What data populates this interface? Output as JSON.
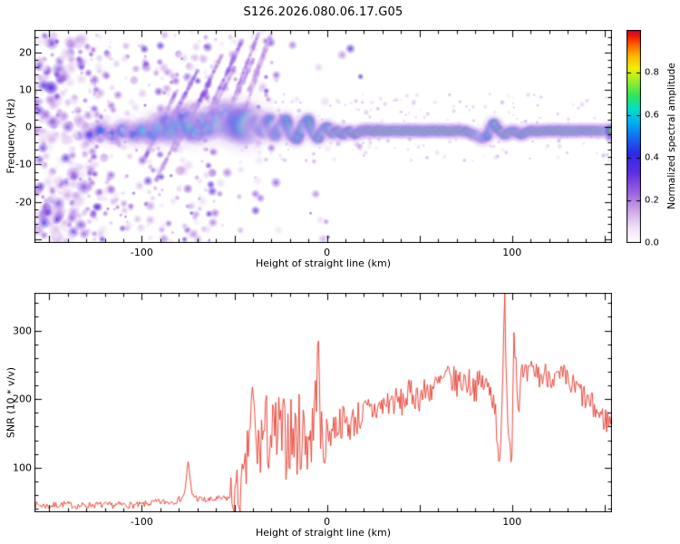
{
  "figure": {
    "background": "#ffffff"
  },
  "chart_data": [
    {
      "type": "heatmap",
      "title": "S126.2026.080.06.17.G05",
      "xlabel": "Height of straight line (km)",
      "ylabel": "Frequency (Hz)",
      "xlim": [
        -158,
        154
      ],
      "ylim": [
        -31,
        26
      ],
      "xticks": [
        -100,
        0,
        100
      ],
      "yticks": [
        20,
        10,
        0,
        -10,
        -20
      ],
      "x_minor_step": 10,
      "x_major_step": 50,
      "y_minor_step": 2,
      "y_major_step": 10,
      "seed": 13,
      "colorbar": {
        "label": "Normalized spectral amplitude",
        "ticks": [
          0.0,
          0.2,
          0.4,
          0.6,
          0.8
        ],
        "range": [
          0,
          1
        ],
        "stops": [
          {
            "t": 0.0,
            "c": "#ffffff"
          },
          {
            "t": 0.07,
            "c": "#f0e4f7"
          },
          {
            "t": 0.15,
            "c": "#cfa7e8"
          },
          {
            "t": 0.24,
            "c": "#9b5fe0"
          },
          {
            "t": 0.33,
            "c": "#5f2ee0"
          },
          {
            "t": 0.42,
            "c": "#2a2ae8"
          },
          {
            "t": 0.5,
            "c": "#1470f0"
          },
          {
            "t": 0.57,
            "c": "#00b4f0"
          },
          {
            "t": 0.63,
            "c": "#00e0c8"
          },
          {
            "t": 0.69,
            "c": "#2ee65a"
          },
          {
            "t": 0.76,
            "c": "#9ced2a"
          },
          {
            "t": 0.82,
            "c": "#f2f000"
          },
          {
            "t": 0.88,
            "c": "#ffb400"
          },
          {
            "t": 0.93,
            "c": "#ff6000"
          },
          {
            "t": 0.97,
            "c": "#f01800"
          },
          {
            "t": 1.0,
            "c": "#c8003c"
          }
        ]
      },
      "noise": {
        "count": 1500,
        "xmax": 25,
        "amp_min": 0.07,
        "amp_max": 0.35
      },
      "halo_specks": {
        "count": 220,
        "x0": -35,
        "x1": 154,
        "f0": -9,
        "f1": 9,
        "amp": 0.14
      },
      "streaks": [
        [
          -98,
          -8,
          -82,
          9,
          0.3
        ],
        [
          -92,
          -14,
          -72,
          6,
          0.25
        ],
        [
          -88,
          -2,
          -70,
          15,
          0.32
        ],
        [
          -82,
          -6,
          -63,
          12,
          0.28
        ],
        [
          -75,
          1,
          -57,
          19,
          0.3
        ],
        [
          -69,
          -3,
          -50,
          16,
          0.26
        ],
        [
          -63,
          5,
          -46,
          23,
          0.3
        ],
        [
          -57,
          -1,
          -40,
          18,
          0.24
        ],
        [
          -51,
          7,
          -37,
          25,
          0.27
        ],
        [
          -46,
          2,
          -33,
          21,
          0.22
        ],
        [
          -42,
          10,
          -30,
          25,
          0.2
        ]
      ],
      "trace": [
        [
          -128,
          -2,
          0.42,
          1.4,
          1
        ],
        [
          -122,
          -1,
          0.5,
          1.5,
          1
        ],
        [
          -116,
          -2,
          0.48,
          1.3,
          1
        ],
        [
          -110,
          -1,
          0.55,
          1.6,
          1
        ],
        [
          -104,
          -2,
          0.5,
          1.4,
          1
        ],
        [
          -99,
          -1,
          0.6,
          1.7,
          1
        ],
        [
          -94,
          -2,
          0.55,
          1.5,
          1
        ],
        [
          -90,
          0,
          0.62,
          1.9,
          1
        ],
        [
          -87,
          2,
          0.5,
          1.5,
          1
        ],
        [
          -84,
          -1,
          0.65,
          1.9,
          1
        ],
        [
          -80,
          1,
          0.6,
          2.0,
          1
        ],
        [
          -77,
          3,
          0.52,
          1.6,
          1
        ],
        [
          -74,
          0,
          0.66,
          2.0,
          1
        ],
        [
          -70,
          -1,
          0.6,
          1.8,
          1
        ],
        [
          -67,
          2,
          0.55,
          1.6,
          1
        ],
        [
          -64,
          0,
          0.62,
          1.8,
          1
        ],
        [
          -61,
          3,
          0.5,
          1.5,
          1
        ],
        [
          -58,
          1,
          0.66,
          2.0,
          1
        ],
        [
          -55,
          4,
          0.55,
          1.8,
          1
        ],
        [
          -52,
          0,
          0.62,
          1.9,
          1
        ],
        [
          -49,
          2,
          0.6,
          2.2,
          1
        ],
        [
          -46,
          0,
          0.66,
          2.4,
          1
        ],
        [
          -43,
          1,
          0.7,
          2.6,
          1
        ],
        [
          -40,
          0,
          0.7,
          2.2,
          0
        ],
        [
          -37,
          1,
          0.66,
          1.8,
          0
        ],
        [
          -34,
          -1,
          0.7,
          1.6,
          0
        ],
        [
          -31,
          2,
          0.66,
          1.6,
          0
        ],
        [
          -28,
          -2,
          0.7,
          1.5,
          0
        ],
        [
          -25,
          0,
          0.72,
          1.4,
          0
        ],
        [
          -22,
          2,
          0.66,
          1.4,
          0
        ],
        [
          -19,
          -2,
          0.74,
          1.4,
          0
        ],
        [
          -16,
          -3,
          0.7,
          1.3,
          0
        ],
        [
          -13,
          0,
          0.75,
          1.3,
          0
        ],
        [
          -10,
          2,
          0.72,
          1.3,
          0
        ],
        [
          -8,
          -1,
          0.75,
          1.2,
          0
        ],
        [
          -5,
          -3,
          0.78,
          1.2,
          0
        ],
        [
          -2,
          -1,
          0.8,
          1.2,
          0
        ],
        [
          0,
          0,
          0.8,
          1.2,
          0
        ],
        [
          3,
          -2,
          0.8,
          1.1,
          0
        ],
        [
          6,
          -1,
          0.84,
          1.1,
          0
        ],
        [
          9,
          -2,
          0.82,
          1.1,
          0
        ],
        [
          12,
          -1,
          0.85,
          1.0,
          0
        ],
        [
          15,
          -2,
          0.86,
          1.0,
          0
        ],
        [
          18,
          -1,
          0.88,
          1.0,
          0
        ],
        [
          22,
          -1,
          0.9,
          1.0,
          0
        ],
        [
          26,
          -1,
          0.94,
          1.0,
          0
        ],
        [
          30,
          -1,
          1.0,
          0.95,
          0
        ],
        [
          40,
          -1,
          1.0,
          0.95,
          0
        ],
        [
          50,
          -1,
          1.0,
          0.95,
          0
        ],
        [
          60,
          -1,
          1.0,
          0.95,
          0
        ],
        [
          70,
          -1,
          0.97,
          0.95,
          0
        ],
        [
          75,
          -1,
          0.9,
          0.95,
          0
        ],
        [
          80,
          -2,
          0.84,
          0.95,
          0
        ],
        [
          84,
          -3,
          0.7,
          1.1,
          0
        ],
        [
          87,
          -2,
          0.62,
          1.2,
          0
        ],
        [
          90,
          1,
          0.75,
          1.2,
          0
        ],
        [
          93,
          -1,
          0.85,
          1.0,
          0
        ],
        [
          96,
          -2,
          0.9,
          1.0,
          0
        ],
        [
          100,
          -1,
          0.9,
          1.0,
          0
        ],
        [
          105,
          -2,
          0.86,
          1.0,
          0
        ],
        [
          110,
          -1,
          0.9,
          0.95,
          0
        ],
        [
          115,
          -1,
          0.96,
          0.95,
          0
        ],
        [
          120,
          -1,
          0.92,
          0.95,
          0
        ],
        [
          125,
          -1,
          0.97,
          0.95,
          0
        ],
        [
          130,
          -1,
          1.0,
          0.95,
          0
        ],
        [
          135,
          -1,
          0.96,
          0.95,
          0
        ],
        [
          140,
          -1,
          0.93,
          0.95,
          0
        ],
        [
          145,
          -1,
          0.97,
          0.95,
          0
        ],
        [
          150,
          -1,
          0.9,
          0.95,
          0
        ],
        [
          154,
          -1,
          0.86,
          0.95,
          0
        ]
      ]
    },
    {
      "type": "line",
      "xlabel": "Height of straight line (km)",
      "ylabel": "SNR (10 * v/v)",
      "xlim": [
        -158,
        154
      ],
      "ylim": [
        35,
        355
      ],
      "xticks": [
        -100,
        0,
        100
      ],
      "yticks": [
        100,
        200,
        300
      ],
      "x_minor_step": 10,
      "x_major_step": 50,
      "y_minor_step": 20,
      "y_major_step": 100,
      "line_color": "#e8392b",
      "seed": 7,
      "points": [
        [
          -158,
          46
        ],
        [
          -150,
          44
        ],
        [
          -142,
          47
        ],
        [
          -134,
          44
        ],
        [
          -126,
          46
        ],
        [
          -118,
          45
        ],
        [
          -110,
          46
        ],
        [
          -102,
          45
        ],
        [
          -96,
          48
        ],
        [
          -90,
          50
        ],
        [
          -85,
          50
        ],
        [
          -80,
          53
        ],
        [
          -77,
          60
        ],
        [
          -75,
          108
        ],
        [
          -73,
          62
        ],
        [
          -70,
          55
        ],
        [
          -65,
          52
        ],
        [
          -60,
          54
        ],
        [
          -55,
          55
        ],
        [
          -50,
          58
        ],
        [
          -47,
          62
        ],
        [
          -44,
          85
        ],
        [
          -42,
          150
        ],
        [
          -40,
          205
        ],
        [
          -38,
          120
        ],
        [
          -35,
          145
        ],
        [
          -32,
          150
        ],
        [
          -29,
          140
        ],
        [
          -26,
          150
        ],
        [
          -23,
          142
        ],
        [
          -20,
          150
        ],
        [
          -17,
          143
        ],
        [
          -14,
          150
        ],
        [
          -11,
          146
        ],
        [
          -8,
          150
        ],
        [
          -6,
          190
        ],
        [
          -5,
          330
        ],
        [
          -4,
          170
        ],
        [
          -2,
          115
        ],
        [
          0,
          148
        ],
        [
          4,
          160
        ],
        [
          8,
          168
        ],
        [
          12,
          162
        ],
        [
          16,
          172
        ],
        [
          20,
          178
        ],
        [
          25,
          184
        ],
        [
          30,
          190
        ],
        [
          35,
          198
        ],
        [
          40,
          194
        ],
        [
          45,
          208
        ],
        [
          50,
          204
        ],
        [
          55,
          214
        ],
        [
          60,
          220
        ],
        [
          65,
          232
        ],
        [
          70,
          224
        ],
        [
          75,
          228
        ],
        [
          80,
          218
        ],
        [
          85,
          224
        ],
        [
          88,
          210
        ],
        [
          90,
          214
        ],
        [
          92,
          150
        ],
        [
          94,
          108
        ],
        [
          96,
          345
        ],
        [
          98,
          155
        ],
        [
          100,
          118
        ],
        [
          101,
          330
        ],
        [
          103,
          196
        ],
        [
          105,
          228
        ],
        [
          108,
          232
        ],
        [
          112,
          242
        ],
        [
          116,
          232
        ],
        [
          120,
          238
        ],
        [
          124,
          228
        ],
        [
          128,
          232
        ],
        [
          132,
          218
        ],
        [
          136,
          214
        ],
        [
          140,
          198
        ],
        [
          144,
          188
        ],
        [
          148,
          174
        ],
        [
          152,
          168
        ],
        [
          154,
          170
        ]
      ],
      "jitter_zones": [
        [
          -158,
          -52,
          5
        ],
        [
          -52,
          -36,
          40
        ],
        [
          -36,
          -2,
          62
        ],
        [
          -2,
          28,
          26
        ],
        [
          28,
          88,
          22
        ],
        [
          88,
          106,
          30
        ],
        [
          106,
          154,
          20
        ]
      ]
    }
  ]
}
